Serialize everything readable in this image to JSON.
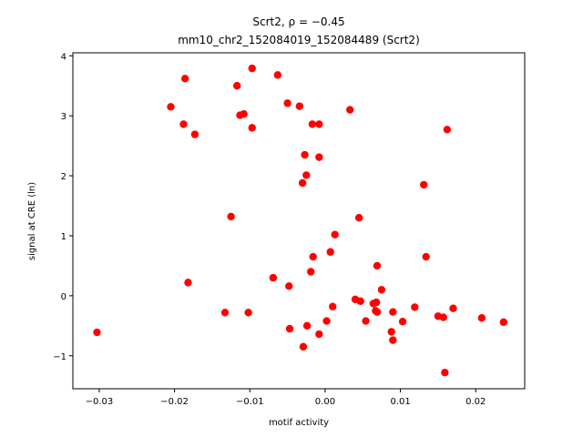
{
  "chart_data": {
    "type": "scatter",
    "title_line1": "Scrt2, ρ = −0.45",
    "title_line2": "mm10_chr2_152084019_152084489 (Scrt2)",
    "xlabel": "motif activity",
    "ylabel": "signal at CRE (ln)",
    "xlim": [
      -0.0335,
      0.0265
    ],
    "ylim": [
      -1.55,
      4.05
    ],
    "xticks": [
      -0.03,
      -0.02,
      -0.01,
      0.0,
      0.01,
      0.02
    ],
    "xtick_labels": [
      "−0.03",
      "−0.02",
      "−0.01",
      "0.00",
      "0.01",
      "0.02"
    ],
    "yticks": [
      -1,
      0,
      1,
      2,
      3,
      4
    ],
    "ytick_labels": [
      "−1",
      "0",
      "1",
      "2",
      "3",
      "4"
    ],
    "grid": false,
    "marker_color": "#ff0000",
    "points": [
      [
        -0.0303,
        -0.61
      ],
      [
        -0.0205,
        3.15
      ],
      [
        -0.0186,
        3.62
      ],
      [
        -0.0188,
        2.86
      ],
      [
        -0.0173,
        2.69
      ],
      [
        -0.0182,
        0.22
      ],
      [
        -0.0117,
        3.5
      ],
      [
        -0.0113,
        3.01
      ],
      [
        -0.0108,
        3.03
      ],
      [
        -0.0097,
        3.79
      ],
      [
        -0.0097,
        2.8
      ],
      [
        -0.0125,
        1.32
      ],
      [
        -0.0133,
        -0.28
      ],
      [
        -0.0102,
        -0.28
      ],
      [
        -0.0063,
        3.68
      ],
      [
        -0.005,
        3.21
      ],
      [
        -0.0034,
        3.16
      ],
      [
        -0.0017,
        2.86
      ],
      [
        -0.0008,
        2.86
      ],
      [
        -0.0027,
        2.35
      ],
      [
        -0.0025,
        2.01
      ],
      [
        -0.0008,
        2.31
      ],
      [
        -0.003,
        1.88
      ],
      [
        0.0033,
        3.1
      ],
      [
        -0.0069,
        0.3
      ],
      [
        -0.0048,
        0.16
      ],
      [
        -0.0016,
        0.65
      ],
      [
        -0.0019,
        0.4
      ],
      [
        0.0007,
        0.73
      ],
      [
        0.0013,
        1.02
      ],
      [
        -0.0047,
        -0.55
      ],
      [
        -0.0024,
        -0.5
      ],
      [
        -0.0029,
        -0.85
      ],
      [
        -0.0008,
        -0.64
      ],
      [
        0.0002,
        -0.42
      ],
      [
        0.001,
        -0.18
      ],
      [
        0.004,
        -0.06
      ],
      [
        0.0047,
        -0.09
      ],
      [
        0.0045,
        1.3
      ],
      [
        0.0069,
        0.5
      ],
      [
        0.0064,
        -0.13
      ],
      [
        0.0068,
        -0.11
      ],
      [
        0.0075,
        0.1
      ],
      [
        0.0067,
        -0.25
      ],
      [
        0.0069,
        -0.27
      ],
      [
        0.0054,
        -0.42
      ],
      [
        0.009,
        -0.27
      ],
      [
        0.0103,
        -0.43
      ],
      [
        0.0088,
        -0.6
      ],
      [
        0.009,
        -0.74
      ],
      [
        0.0119,
        -0.19
      ],
      [
        0.0131,
        1.85
      ],
      [
        0.0134,
        0.65
      ],
      [
        0.0162,
        2.77
      ],
      [
        0.015,
        -0.34
      ],
      [
        0.0157,
        -0.36
      ],
      [
        0.017,
        -0.21
      ],
      [
        0.0159,
        -1.28
      ],
      [
        0.0208,
        -0.37
      ],
      [
        0.0237,
        -0.44
      ]
    ]
  }
}
